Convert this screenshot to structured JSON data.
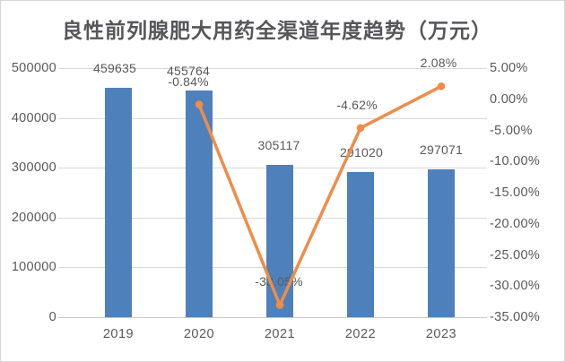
{
  "title": "良性前列腺肥大用药全渠道年度趋势（万元）",
  "chart_data": {
    "type": "combo: bar + line",
    "title": "良性前列腺肥大用药全渠道年度趋势（万元）",
    "categories": [
      "2019",
      "2020",
      "2021",
      "2022",
      "2023"
    ],
    "series": [
      {
        "name": "annual-sales",
        "type": "bar",
        "values": [
          459635,
          455764,
          305117,
          291020,
          297071
        ],
        "labels": [
          "459635",
          "455764",
          "305117",
          "291020",
          "297071"
        ],
        "color": "#4E80BC"
      },
      {
        "name": "growth-rate-percent",
        "type": "line",
        "values": [
          null,
          -0.84,
          -33.05,
          -4.62,
          2.08
        ],
        "labels": [
          null,
          "-0.84%",
          "-33.05%",
          "-4.62%",
          "2.08%"
        ],
        "color": "#EF8C48"
      }
    ],
    "left_axis": {
      "min": 0,
      "max": 500000,
      "step": 100000,
      "tick_labels": [
        "500000",
        "400000",
        "300000",
        "200000",
        "100000",
        "0"
      ]
    },
    "right_axis": {
      "min": -35,
      "max": 5,
      "step": 5,
      "tick_labels": [
        "5.00%",
        "0.00%",
        "-5.00%",
        "-10.00%",
        "-15.00%",
        "-20.00%",
        "-25.00%",
        "-30.00%",
        "-35.00%"
      ]
    },
    "grid": true,
    "legend": "none",
    "bar_label_dx": [
      -4,
      -12,
      -1,
      1,
      0
    ],
    "line_label_dx": [
      0,
      -12,
      -1,
      -4,
      -3
    ],
    "colors": {
      "bar": "#4E80BC",
      "line": "#EF8C48",
      "grid": "#D9D9D9",
      "axis_line": "#C9C9C9",
      "axis_text": "#595959",
      "title_text": "#55565A",
      "background": "#FFFFFF",
      "border": "#D7D7D7"
    }
  }
}
